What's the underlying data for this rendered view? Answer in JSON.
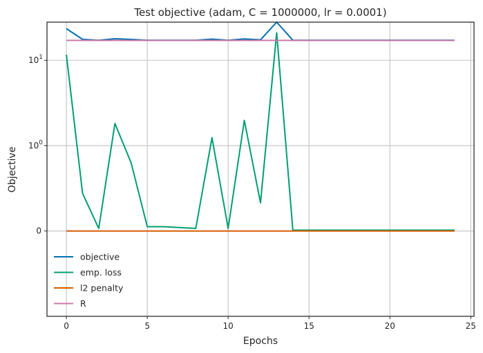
{
  "chart_data": {
    "type": "line",
    "title": "Test objective (adam, C = 1000000, lr = 0.0001)",
    "xlabel": "Epochs",
    "ylabel": "Objective",
    "yscale": "symlog",
    "xlim": [
      -1.2,
      25.2
    ],
    "ylim": [
      -1.0,
      28
    ],
    "grid": true,
    "legend_position": "lower-left",
    "x_ticks": [
      {
        "value": 0,
        "label": "0"
      },
      {
        "value": 5,
        "label": "5"
      },
      {
        "value": 10,
        "label": "10"
      },
      {
        "value": 15,
        "label": "15"
      },
      {
        "value": 20,
        "label": "20"
      },
      {
        "value": 25,
        "label": "25"
      }
    ],
    "y_ticks": [
      {
        "value": 0,
        "base": "0",
        "exp": ""
      },
      {
        "value": 1,
        "base": "10",
        "exp": "0"
      },
      {
        "value": 10,
        "base": "10",
        "exp": "1"
      }
    ],
    "x": [
      0,
      1,
      2,
      3,
      4,
      5,
      6,
      7,
      8,
      9,
      10,
      11,
      12,
      13,
      14,
      15,
      16,
      17,
      18,
      19,
      20,
      21,
      22,
      23,
      24
    ],
    "series": [
      {
        "name": "objective",
        "color": "#0072b2",
        "values": [
          23.5,
          17.6,
          17.2,
          17.9,
          17.6,
          17.2,
          17.2,
          17.2,
          17.2,
          17.7,
          17.2,
          17.8,
          17.4,
          28.0,
          17.2,
          17.2,
          17.2,
          17.2,
          17.2,
          17.2,
          17.2,
          17.2,
          17.2,
          17.2,
          17.2
        ]
      },
      {
        "name": "emp. loss",
        "color": "#009e73",
        "values": [
          11.6,
          0.44,
          0.03,
          1.82,
          0.8,
          0.05,
          0.05,
          0.04,
          0.03,
          1.24,
          0.03,
          1.98,
          0.33,
          21.0,
          0.01,
          0.01,
          0.01,
          0.01,
          0.01,
          0.01,
          0.01,
          0.01,
          0.01,
          0.01,
          0.01
        ]
      },
      {
        "name": "l2 penalty",
        "color": "#d55e00",
        "values": [
          0.0,
          0.0,
          0.0,
          0.0,
          0.0,
          0.0,
          0.0,
          0.0,
          0.0,
          0.0,
          0.0,
          0.0,
          0.0,
          0.0,
          0.0,
          0.0,
          0.0,
          0.0,
          0.0,
          0.0,
          0.0,
          0.0,
          0.0,
          0.0,
          0.0
        ]
      },
      {
        "name": "R",
        "color": "#cc79a7",
        "values": [
          17.1,
          17.1,
          17.1,
          17.1,
          17.1,
          17.1,
          17.1,
          17.1,
          17.1,
          17.1,
          17.1,
          17.1,
          17.1,
          17.1,
          17.1,
          17.1,
          17.1,
          17.1,
          17.1,
          17.1,
          17.1,
          17.1,
          17.1,
          17.1,
          17.1
        ]
      }
    ]
  }
}
